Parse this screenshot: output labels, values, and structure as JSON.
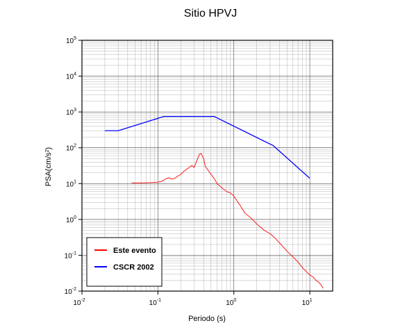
{
  "chart_data": {
    "type": "line",
    "title": "Sitio HPVJ",
    "xlabel": "Periodo (s)",
    "ylabel_parts": [
      "PSA(cm/s",
      "2",
      ")"
    ],
    "xscale": "log",
    "yscale": "log",
    "xlim": [
      0.01,
      20
    ],
    "ylim": [
      0.01,
      100000
    ],
    "grid": true,
    "legend_position": "bottom-left",
    "x_ticks": [
      {
        "base": "10",
        "exp": "-2",
        "value": 0.01
      },
      {
        "base": "10",
        "exp": "-1",
        "value": 0.1
      },
      {
        "base": "10",
        "exp": "0",
        "value": 1
      },
      {
        "base": "10",
        "exp": "1",
        "value": 10
      }
    ],
    "y_ticks": [
      {
        "base": "10",
        "exp": "-2",
        "value": 0.01
      },
      {
        "base": "10",
        "exp": "-1",
        "value": 0.1
      },
      {
        "base": "10",
        "exp": "0",
        "value": 1
      },
      {
        "base": "10",
        "exp": "1",
        "value": 10
      },
      {
        "base": "10",
        "exp": "2",
        "value": 100
      },
      {
        "base": "10",
        "exp": "3",
        "value": 1000
      },
      {
        "base": "10",
        "exp": "4",
        "value": 10000
      },
      {
        "base": "10",
        "exp": "5",
        "value": 100000
      }
    ],
    "series": [
      {
        "name": "Este evento",
        "color": "#ff0000",
        "x": [
          0.045,
          0.06,
          0.08,
          0.1,
          0.11,
          0.12,
          0.13,
          0.14,
          0.15,
          0.16,
          0.17,
          0.18,
          0.2,
          0.22,
          0.25,
          0.28,
          0.3,
          0.32,
          0.35,
          0.37,
          0.4,
          0.42,
          0.45,
          0.5,
          0.55,
          0.6,
          0.7,
          0.8,
          0.9,
          1.0,
          1.2,
          1.4,
          1.6,
          1.8,
          2.0,
          2.5,
          3.0,
          3.5,
          4.0,
          5.0,
          6.0,
          7.0,
          8.0,
          9.0,
          10.0,
          11.0,
          12.0,
          13.0,
          14.0,
          15.0
        ],
        "values": [
          10.5,
          10.5,
          10.7,
          11,
          11.5,
          12.5,
          14,
          14.5,
          13.5,
          13.5,
          14.5,
          16,
          18,
          22,
          27,
          32,
          28,
          40,
          65,
          70,
          50,
          30,
          25,
          18,
          14,
          10,
          7.5,
          6,
          5.5,
          4.5,
          2.5,
          1.5,
          1.2,
          0.95,
          0.75,
          0.5,
          0.4,
          0.3,
          0.22,
          0.13,
          0.09,
          0.065,
          0.045,
          0.035,
          0.028,
          0.025,
          0.02,
          0.018,
          0.015,
          0.012
        ]
      },
      {
        "name": "CSCR 2002",
        "color": "#0000ff",
        "x": [
          0.02,
          0.03,
          0.12,
          0.55,
          3.3,
          10
        ],
        "values": [
          300,
          300,
          750,
          750,
          115,
          14
        ]
      }
    ]
  }
}
